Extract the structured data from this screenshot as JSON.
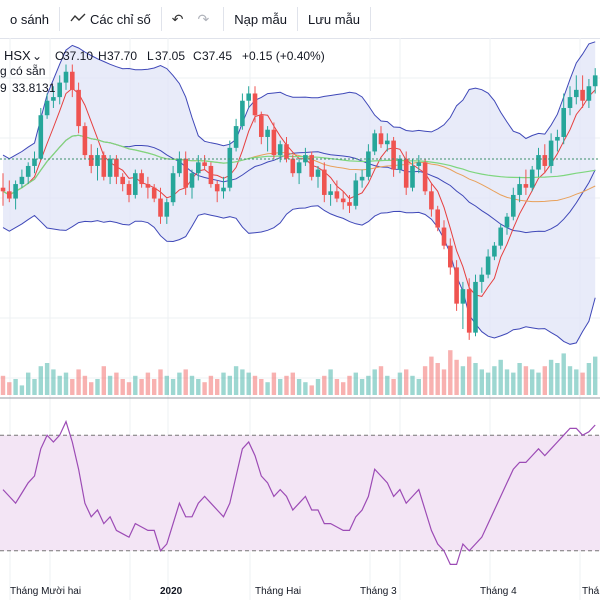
{
  "toolbar": {
    "compare_label": "o sánh",
    "indicators_label": "Các chỉ số",
    "undo_icon": "undo-icon",
    "redo_icon": "redo-icon",
    "load_template_label": "Nạp mẫu",
    "save_template_label": "Lưu mẫu"
  },
  "legend": {
    "exchange": "HSX",
    "o_label": "O",
    "o_value": "37.10",
    "h_label": "H",
    "h_value": "37.70",
    "l_label": "L",
    "l_value": "37.05",
    "c_label": "C",
    "c_value": "37.45",
    "change": "+0.15 (+0.40%)",
    "sub_label": "g có sẵn",
    "indicator_prefix": "9",
    "indicator_value": "33.8131"
  },
  "x_axis": {
    "ticks": [
      "Tháng Mười hai",
      "2020",
      "Tháng Hai",
      "Tháng 3",
      "Tháng 4",
      "Thá"
    ]
  },
  "colors": {
    "up": "#26a69a",
    "down": "#ef5350",
    "bands_fill": "#e0e4f7",
    "bands_line": "#3f48b8",
    "ma_short": "#e64040",
    "ma_mid": "#e8a05a",
    "ma_long": "#7ed67e",
    "rsi_line": "#9c4bb5",
    "rsi_fill": "#f3e5f5"
  },
  "chart_data": {
    "type": "candlestick",
    "ohlc": [
      [
        22,
        26,
        17,
        21
      ],
      [
        21,
        24,
        18,
        19
      ],
      [
        19,
        24,
        16,
        23
      ],
      [
        23,
        27,
        22,
        25
      ],
      [
        25,
        29,
        23,
        28
      ],
      [
        28,
        32,
        26,
        30
      ],
      [
        30,
        44,
        30,
        42
      ],
      [
        42,
        48,
        41,
        46
      ],
      [
        46,
        50,
        44,
        47
      ],
      [
        47,
        53,
        45,
        51
      ],
      [
        51,
        56,
        49,
        54
      ],
      [
        54,
        56,
        47,
        49
      ],
      [
        49,
        51,
        37,
        39
      ],
      [
        39,
        40,
        30,
        31
      ],
      [
        31,
        34,
        26,
        28
      ],
      [
        28,
        33,
        24,
        31
      ],
      [
        31,
        32,
        24,
        25
      ],
      [
        25,
        31,
        23,
        30
      ],
      [
        30,
        31,
        23,
        25
      ],
      [
        25,
        26,
        21,
        23
      ],
      [
        23,
        24,
        18,
        20
      ],
      [
        20,
        27,
        19,
        26
      ],
      [
        26,
        27,
        22,
        23
      ],
      [
        23,
        25,
        19,
        22
      ],
      [
        22,
        23,
        18,
        19
      ],
      [
        19,
        22,
        12,
        14
      ],
      [
        14,
        19,
        12,
        18
      ],
      [
        18,
        28,
        17,
        26
      ],
      [
        26,
        32,
        25,
        30
      ],
      [
        30,
        32,
        20,
        22
      ],
      [
        22,
        27,
        19,
        26
      ],
      [
        26,
        31,
        24,
        29
      ],
      [
        29,
        31,
        27,
        28
      ],
      [
        28,
        29,
        22,
        23
      ],
      [
        23,
        24,
        18,
        21
      ],
      [
        21,
        25,
        19,
        22
      ],
      [
        22,
        35,
        21,
        33
      ],
      [
        33,
        41,
        32,
        39
      ],
      [
        39,
        48,
        38,
        46
      ],
      [
        46,
        50,
        44,
        48
      ],
      [
        48,
        50,
        40,
        42
      ],
      [
        42,
        43,
        34,
        36
      ],
      [
        36,
        39,
        32,
        38
      ],
      [
        38,
        40,
        30,
        31
      ],
      [
        31,
        35,
        29,
        34
      ],
      [
        34,
        36,
        29,
        30
      ],
      [
        30,
        31,
        25,
        26
      ],
      [
        26,
        30,
        23,
        29
      ],
      [
        29,
        33,
        28,
        31
      ],
      [
        31,
        32,
        24,
        25
      ],
      [
        25,
        28,
        22,
        27
      ],
      [
        27,
        29,
        18,
        20
      ],
      [
        20,
        23,
        17,
        21
      ],
      [
        21,
        24,
        18,
        19
      ],
      [
        19,
        21,
        16,
        18
      ],
      [
        18,
        20,
        15,
        17
      ],
      [
        17,
        26,
        16,
        24
      ],
      [
        24,
        27,
        22,
        25
      ],
      [
        25,
        34,
        24,
        32
      ],
      [
        32,
        38,
        31,
        37
      ],
      [
        37,
        39,
        33,
        34
      ],
      [
        34,
        37,
        32,
        35
      ],
      [
        35,
        36,
        25,
        27
      ],
      [
        27,
        31,
        26,
        30
      ],
      [
        30,
        32,
        20,
        22
      ],
      [
        22,
        30,
        21,
        28
      ],
      [
        28,
        31,
        26,
        29
      ],
      [
        29,
        30,
        20,
        21
      ],
      [
        21,
        23,
        14,
        16
      ],
      [
        16,
        17,
        10,
        11
      ],
      [
        11,
        13,
        5,
        6
      ],
      [
        6,
        8,
        -2,
        0
      ],
      [
        0,
        2,
        -12,
        -10
      ],
      [
        -10,
        -4,
        -17,
        -6
      ],
      [
        -6,
        -3,
        -20,
        -18
      ],
      [
        -18,
        -2,
        -19,
        -4
      ],
      [
        -4,
        0,
        -7,
        -2
      ],
      [
        -2,
        5,
        -3,
        3
      ],
      [
        3,
        7,
        2,
        6
      ],
      [
        6,
        12,
        5,
        11
      ],
      [
        11,
        15,
        9,
        14
      ],
      [
        14,
        22,
        13,
        20
      ],
      [
        20,
        25,
        18,
        23
      ],
      [
        23,
        27,
        20,
        22
      ],
      [
        22,
        28,
        21,
        27
      ],
      [
        27,
        33,
        25,
        31
      ],
      [
        31,
        34,
        26,
        28
      ],
      [
        28,
        37,
        26,
        35
      ],
      [
        35,
        38,
        32,
        36
      ],
      [
        36,
        48,
        34,
        44
      ],
      [
        44,
        50,
        42,
        47
      ],
      [
        47,
        53,
        45,
        49
      ],
      [
        49,
        53,
        44,
        46
      ],
      [
        46,
        52,
        44,
        50
      ],
      [
        50,
        55,
        48,
        53
      ]
    ],
    "volume": [
      6,
      4,
      5,
      3,
      7,
      5,
      9,
      10,
      8,
      6,
      7,
      5,
      8,
      6,
      4,
      5,
      9,
      6,
      7,
      5,
      4,
      6,
      5,
      7,
      5,
      8,
      6,
      5,
      7,
      8,
      6,
      5,
      4,
      6,
      5,
      7,
      6,
      9,
      8,
      7,
      6,
      5,
      4,
      7,
      5,
      6,
      7,
      5,
      4,
      3,
      5,
      6,
      8,
      5,
      4,
      6,
      7,
      5,
      6,
      8,
      9,
      6,
      5,
      7,
      8,
      6,
      5,
      9,
      12,
      10,
      8,
      14,
      11,
      9,
      12,
      10,
      8,
      7,
      9,
      11,
      8,
      7,
      10,
      9,
      8,
      7,
      9,
      11,
      10,
      13,
      9,
      8,
      7,
      10,
      12
    ],
    "rsi": [
      46,
      44,
      42,
      45,
      48,
      50,
      58,
      62,
      60,
      62,
      66,
      60,
      52,
      42,
      38,
      40,
      36,
      38,
      34,
      33,
      32,
      36,
      35,
      34,
      34,
      28,
      30,
      36,
      42,
      38,
      38,
      42,
      44,
      42,
      40,
      38,
      42,
      50,
      58,
      60,
      56,
      50,
      48,
      44,
      46,
      44,
      40,
      42,
      44,
      40,
      40,
      36,
      36,
      35,
      34,
      34,
      38,
      40,
      44,
      52,
      50,
      48,
      44,
      46,
      42,
      44,
      46,
      40,
      34,
      30,
      28,
      24,
      24,
      30,
      28,
      30,
      32,
      36,
      40,
      44,
      48,
      52,
      54,
      54,
      56,
      58,
      56,
      58,
      60,
      62,
      64,
      64,
      62,
      63,
      65
    ]
  }
}
